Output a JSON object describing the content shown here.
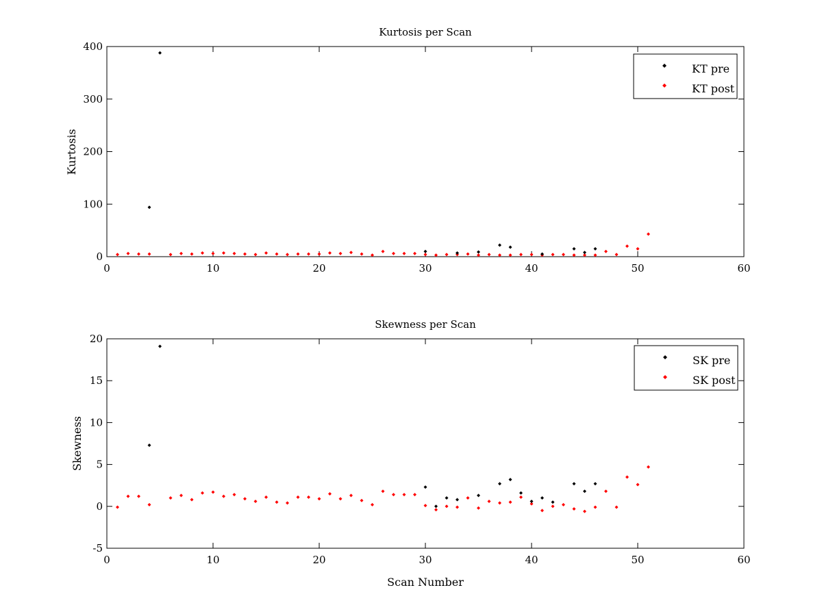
{
  "chart_data": [
    {
      "type": "scatter",
      "title": "Kurtosis per Scan",
      "xlabel": "",
      "ylabel": "Kurtosis",
      "xlim": [
        0,
        60
      ],
      "ylim": [
        0,
        400
      ],
      "xticks": [
        0,
        10,
        20,
        30,
        40,
        50,
        60
      ],
      "yticks": [
        0,
        100,
        200,
        300,
        400
      ],
      "legend_position": "top-right",
      "grid": false,
      "series": [
        {
          "name": "KT pre",
          "color": "#000000",
          "x": [
            4,
            5,
            30,
            33,
            35,
            37,
            38,
            41,
            44,
            45,
            46
          ],
          "y": [
            94,
            388,
            10,
            7,
            9,
            22,
            18,
            5,
            15,
            8,
            15
          ]
        },
        {
          "name": "KT post",
          "color": "#ff0000",
          "x": [
            1,
            2,
            3,
            4,
            6,
            7,
            8,
            9,
            10,
            11,
            12,
            13,
            14,
            15,
            16,
            17,
            18,
            19,
            20,
            21,
            22,
            23,
            24,
            25,
            26,
            27,
            28,
            29,
            30,
            31,
            32,
            33,
            34,
            35,
            36,
            37,
            38,
            39,
            40,
            41,
            42,
            43,
            44,
            45,
            46,
            47,
            48,
            49,
            50,
            51
          ],
          "y": [
            4,
            6,
            5,
            5,
            4,
            6,
            5,
            7,
            6,
            7,
            6,
            5,
            4,
            7,
            5,
            4,
            5,
            5,
            5,
            7,
            6,
            8,
            5,
            3,
            10,
            6,
            6,
            6,
            4,
            3,
            4,
            4,
            5,
            3,
            4,
            3,
            3,
            4,
            4,
            3,
            4,
            4,
            3,
            3,
            3,
            10,
            4,
            20,
            15,
            43
          ]
        }
      ]
    },
    {
      "type": "scatter",
      "title": "Skewness per Scan",
      "xlabel": "Scan Number",
      "ylabel": "Skewness",
      "xlim": [
        0,
        60
      ],
      "ylim": [
        -5,
        20
      ],
      "xticks": [
        0,
        10,
        20,
        30,
        40,
        50,
        60
      ],
      "yticks": [
        -5,
        0,
        5,
        10,
        15,
        20
      ],
      "legend_position": "top-right",
      "grid": false,
      "series": [
        {
          "name": "SK pre",
          "color": "#000000",
          "x": [
            4,
            5,
            30,
            31,
            32,
            33,
            35,
            37,
            38,
            39,
            40,
            41,
            42,
            44,
            45,
            46
          ],
          "y": [
            7.3,
            19.1,
            2.3,
            0.0,
            1.0,
            0.8,
            1.3,
            2.7,
            3.2,
            1.6,
            0.6,
            1.0,
            0.5,
            2.7,
            1.8,
            2.7
          ]
        },
        {
          "name": "SK post",
          "color": "#ff0000",
          "x": [
            1,
            2,
            3,
            4,
            6,
            7,
            8,
            9,
            10,
            11,
            12,
            13,
            14,
            15,
            16,
            17,
            18,
            19,
            20,
            21,
            22,
            23,
            24,
            25,
            26,
            27,
            28,
            29,
            30,
            31,
            32,
            33,
            34,
            35,
            36,
            37,
            38,
            39,
            40,
            41,
            42,
            43,
            44,
            45,
            46,
            47,
            48,
            49,
            50,
            51
          ],
          "y": [
            -0.1,
            1.2,
            1.2,
            0.2,
            1.0,
            1.3,
            0.8,
            1.6,
            1.7,
            1.2,
            1.4,
            0.9,
            0.6,
            1.1,
            0.5,
            0.4,
            1.1,
            1.1,
            0.9,
            1.5,
            0.9,
            1.3,
            0.7,
            0.2,
            1.8,
            1.4,
            1.4,
            1.4,
            0.1,
            -0.4,
            0.0,
            -0.1,
            1.0,
            -0.2,
            0.6,
            0.4,
            0.5,
            1.1,
            0.3,
            -0.5,
            0.0,
            0.2,
            -0.3,
            -0.6,
            -0.1,
            1.8,
            -0.1,
            3.5,
            2.6,
            4.7
          ]
        }
      ]
    }
  ]
}
